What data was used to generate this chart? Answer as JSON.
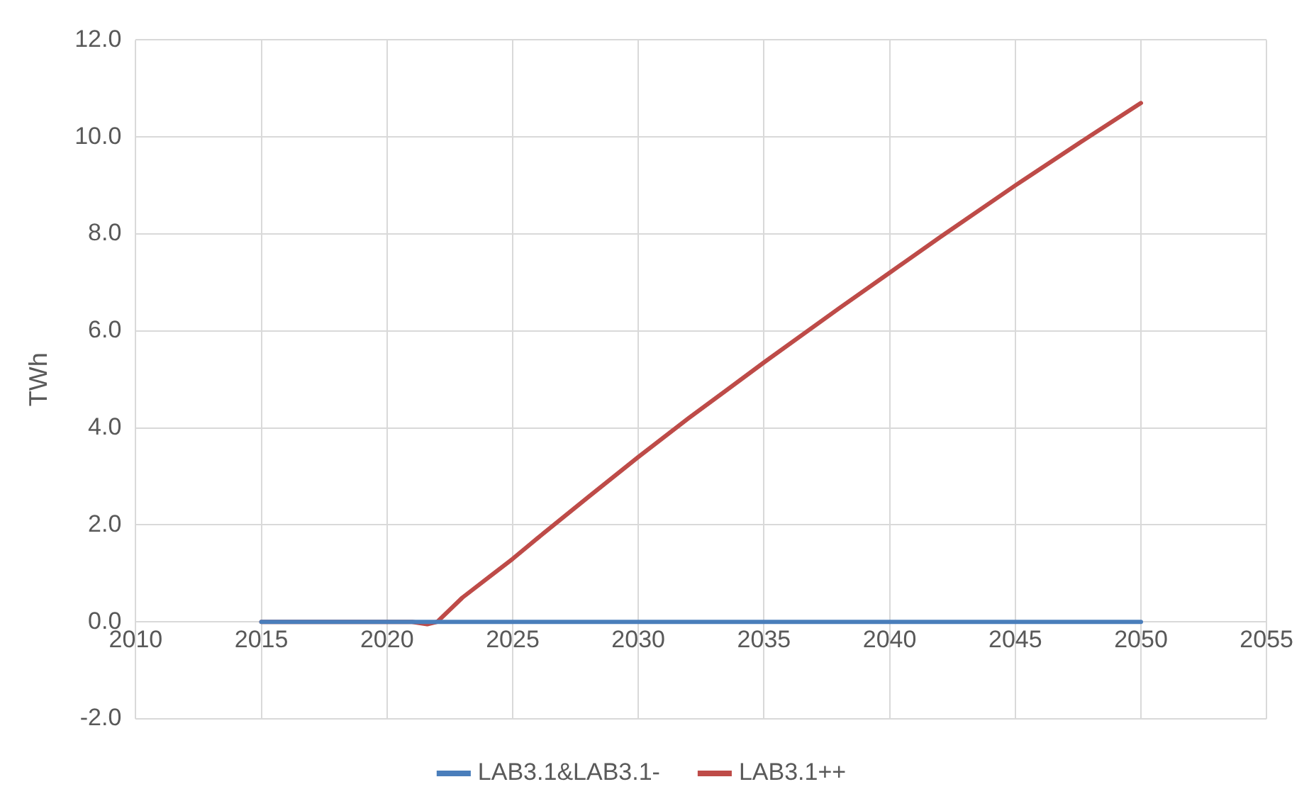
{
  "chart_data": {
    "type": "line",
    "ylabel": "TWh",
    "xlim": [
      2010,
      2055
    ],
    "xticks": [
      2010,
      2015,
      2020,
      2025,
      2030,
      2035,
      2040,
      2045,
      2050,
      2055
    ],
    "ylim": [
      -2,
      12
    ],
    "yticks": [
      {
        "value": -2,
        "label": "-2.0"
      },
      {
        "value": 0,
        "label": "0.0"
      },
      {
        "value": 2,
        "label": "2.0"
      },
      {
        "value": 4,
        "label": "4.0"
      },
      {
        "value": 6,
        "label": "6.0"
      },
      {
        "value": 8,
        "label": "8.0"
      },
      {
        "value": 10,
        "label": "10.0"
      },
      {
        "value": 12,
        "label": "12.0"
      }
    ],
    "grid": true,
    "legend": "bottom",
    "marker": "none",
    "line_style": "solid",
    "series": [
      {
        "name": "LAB3.1&LAB3.1-",
        "color": "#4a7ebb",
        "x": [
          2015,
          2020,
          2025,
          2030,
          2035,
          2040,
          2045,
          2050
        ],
        "values": [
          0,
          0,
          0,
          0,
          0,
          0,
          0,
          0
        ]
      },
      {
        "name": "LAB3.1++",
        "color": "#be4b48",
        "x": [
          2015,
          2020,
          2021,
          2021.6,
          2022,
          2023,
          2024,
          2025,
          2026,
          2028,
          2030,
          2032,
          2035,
          2038,
          2040,
          2042,
          2045,
          2048,
          2050
        ],
        "values": [
          0,
          0,
          0,
          -0.05,
          0,
          0.5,
          0.9,
          1.3,
          1.73,
          2.57,
          3.4,
          4.2,
          5.35,
          6.47,
          7.2,
          7.93,
          9.0,
          10.03,
          10.7
        ]
      }
    ]
  }
}
